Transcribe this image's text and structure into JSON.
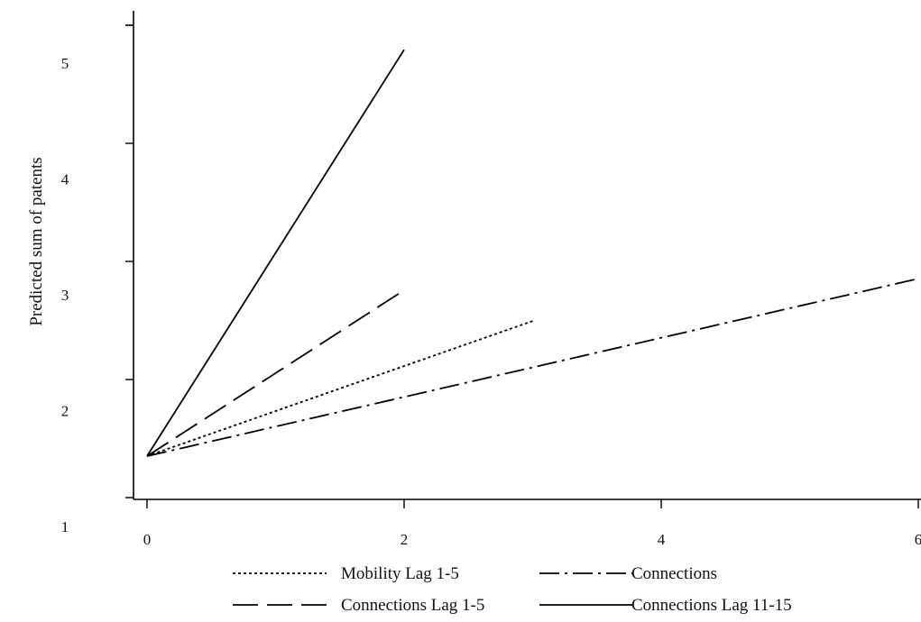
{
  "chart_data": {
    "type": "line",
    "title": "",
    "xlabel": "",
    "ylabel": "Predicted sum of patents",
    "xlim": [
      0,
      6
    ],
    "ylim": [
      1,
      5.3
    ],
    "xticks": [
      0,
      2,
      4,
      6
    ],
    "yticks": [
      1,
      2,
      3,
      4,
      5
    ],
    "x_tick_labels": [
      "0",
      "2",
      "4",
      "6"
    ],
    "y_tick_labels": [
      "1",
      "2",
      "3",
      "4",
      "5"
    ],
    "grid": false,
    "legend_position": "bottom",
    "series": [
      {
        "name": "Mobility Lag 1-5",
        "dash": "dotted",
        "x": [
          0,
          3
        ],
        "y": [
          1.45,
          2.63
        ]
      },
      {
        "name": "Connections",
        "dash": "dash-dot",
        "x": [
          0,
          6
        ],
        "y": [
          1.45,
          3.0
        ]
      },
      {
        "name": "Connections Lag 1-5",
        "dash": "dashed",
        "x": [
          0,
          2
        ],
        "y": [
          1.45,
          2.9
        ]
      },
      {
        "name": "Connections Lag 11-15",
        "dash": "solid",
        "x": [
          0,
          2
        ],
        "y": [
          1.45,
          5.0
        ]
      }
    ],
    "colors": {
      "line": "#000000",
      "axis": "#000000",
      "background": "#ffffff"
    }
  }
}
